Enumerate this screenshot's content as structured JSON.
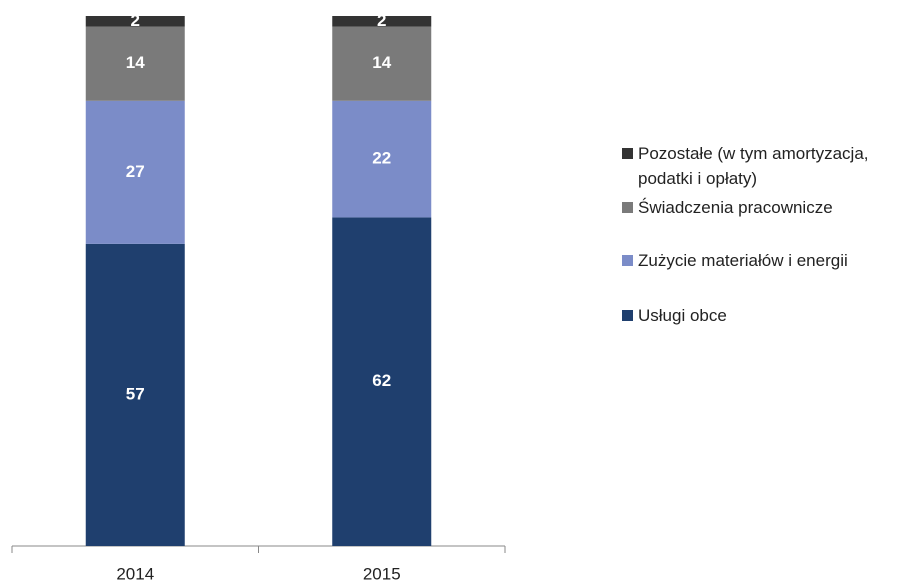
{
  "chart_data": {
    "type": "stacked-bar",
    "categories": [
      "2014",
      "2015"
    ],
    "series": [
      {
        "name": "Usługi obce",
        "color": "#1f3f6e",
        "values": [
          57,
          62
        ]
      },
      {
        "name": "Zużycie materiałów i energii",
        "color": "#7b8cc8",
        "values": [
          27,
          22
        ]
      },
      {
        "name": "Świadczenia pracownicze",
        "color": "#7a7a7a",
        "values": [
          14,
          14
        ]
      },
      {
        "name": "Pozostałe (w tym amortyzacja, podatki i opłaty)",
        "color": "#333333",
        "values": [
          2,
          2
        ]
      }
    ]
  }
}
